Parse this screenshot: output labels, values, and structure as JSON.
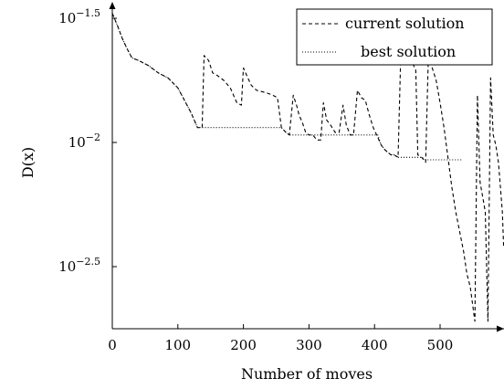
{
  "chart_data": {
    "type": "line",
    "title": "",
    "xlabel": "Number of moves",
    "ylabel": "D(x)",
    "xlim": [
      0,
      600
    ],
    "ylim": [
      -2.72,
      -1.45
    ],
    "y_scale": "log10",
    "grid": false,
    "legend_position": "top-right",
    "x_ticks": [
      {
        "value": 0,
        "label": "0"
      },
      {
        "value": 100,
        "label": "100"
      },
      {
        "value": 200,
        "label": "200"
      },
      {
        "value": 300,
        "label": "300"
      },
      {
        "value": 400,
        "label": "400"
      },
      {
        "value": 500,
        "label": "500"
      }
    ],
    "y_ticks": [
      {
        "value": -1.5,
        "base": "10",
        "exp": "−1.5"
      },
      {
        "value": -2.0,
        "base": "10",
        "exp": "−2"
      },
      {
        "value": -2.5,
        "base": "10",
        "exp": "−2.5"
      }
    ],
    "series": [
      {
        "name": "current solution",
        "style": "dashed",
        "color": "#000000",
        "points": [
          [
            0,
            -1.48
          ],
          [
            8,
            -1.53
          ],
          [
            15,
            -1.58
          ],
          [
            22,
            -1.62
          ],
          [
            30,
            -1.66
          ],
          [
            40,
            -1.67
          ],
          [
            55,
            -1.69
          ],
          [
            70,
            -1.72
          ],
          [
            85,
            -1.74
          ],
          [
            100,
            -1.78
          ],
          [
            110,
            -1.83
          ],
          [
            120,
            -1.88
          ],
          [
            130,
            -1.94
          ],
          [
            137,
            -1.94
          ],
          [
            140,
            -1.65
          ],
          [
            147,
            -1.67
          ],
          [
            153,
            -1.72
          ],
          [
            160,
            -1.73
          ],
          [
            170,
            -1.75
          ],
          [
            180,
            -1.78
          ],
          [
            190,
            -1.84
          ],
          [
            197,
            -1.85
          ],
          [
            200,
            -1.7
          ],
          [
            205,
            -1.73
          ],
          [
            212,
            -1.77
          ],
          [
            220,
            -1.79
          ],
          [
            235,
            -1.8
          ],
          [
            245,
            -1.81
          ],
          [
            252,
            -1.82
          ],
          [
            258,
            -1.94
          ],
          [
            265,
            -1.96
          ],
          [
            270,
            -1.97
          ],
          [
            276,
            -1.81
          ],
          [
            281,
            -1.85
          ],
          [
            285,
            -1.89
          ],
          [
            290,
            -1.92
          ],
          [
            295,
            -1.96
          ],
          [
            300,
            -1.97
          ],
          [
            306,
            -1.97
          ],
          [
            312,
            -1.99
          ],
          [
            318,
            -1.99
          ],
          [
            322,
            -1.84
          ],
          [
            327,
            -1.91
          ],
          [
            333,
            -1.93
          ],
          [
            340,
            -1.96
          ],
          [
            346,
            -1.96
          ],
          [
            352,
            -1.85
          ],
          [
            357,
            -1.93
          ],
          [
            363,
            -1.97
          ],
          [
            368,
            -1.97
          ],
          [
            374,
            -1.79
          ],
          [
            380,
            -1.82
          ],
          [
            386,
            -1.83
          ],
          [
            392,
            -1.89
          ],
          [
            398,
            -1.94
          ],
          [
            405,
            -1.98
          ],
          [
            410,
            -2.01
          ],
          [
            416,
            -2.03
          ],
          [
            425,
            -2.05
          ],
          [
            430,
            -2.05
          ],
          [
            436,
            -2.06
          ],
          [
            440,
            -1.65
          ],
          [
            447,
            -1.63
          ],
          [
            453,
            -1.65
          ],
          [
            458,
            -1.68
          ],
          [
            463,
            -1.71
          ],
          [
            466,
            -2.05
          ],
          [
            472,
            -2.06
          ],
          [
            478,
            -2.08
          ],
          [
            482,
            -1.66
          ],
          [
            488,
            -1.7
          ],
          [
            494,
            -1.75
          ],
          [
            500,
            -1.84
          ],
          [
            506,
            -1.94
          ],
          [
            512,
            -2.06
          ],
          [
            518,
            -2.18
          ],
          [
            524,
            -2.28
          ],
          [
            530,
            -2.36
          ],
          [
            536,
            -2.44
          ],
          [
            541,
            -2.53
          ],
          [
            546,
            -2.58
          ],
          [
            550,
            -2.66
          ],
          [
            553,
            -2.72
          ],
          [
            557,
            -1.81
          ],
          [
            561,
            -2.16
          ],
          [
            565,
            -2.22
          ],
          [
            569,
            -2.28
          ],
          [
            573,
            -2.72
          ],
          [
            577,
            -1.74
          ],
          [
            581,
            -1.97
          ],
          [
            585,
            -2.01
          ],
          [
            589,
            -2.08
          ],
          [
            592,
            -2.18
          ],
          [
            595,
            -2.28
          ],
          [
            597,
            -2.42
          ]
        ]
      },
      {
        "name": "best solution",
        "style": "dotted",
        "color": "#000000",
        "points": [
          [
            0,
            -1.48
          ],
          [
            8,
            -1.53
          ],
          [
            15,
            -1.58
          ],
          [
            22,
            -1.62
          ],
          [
            30,
            -1.66
          ],
          [
            40,
            -1.67
          ],
          [
            55,
            -1.69
          ],
          [
            70,
            -1.72
          ],
          [
            85,
            -1.74
          ],
          [
            100,
            -1.78
          ],
          [
            110,
            -1.83
          ],
          [
            120,
            -1.88
          ],
          [
            130,
            -1.94
          ],
          [
            137,
            -1.94
          ],
          [
            258,
            -1.94
          ],
          [
            265,
            -1.96
          ],
          [
            270,
            -1.97
          ],
          [
            405,
            -1.97
          ],
          [
            410,
            -2.01
          ],
          [
            416,
            -2.03
          ],
          [
            425,
            -2.05
          ],
          [
            430,
            -2.05
          ],
          [
            436,
            -2.06
          ],
          [
            472,
            -2.06
          ],
          [
            478,
            -2.07
          ],
          [
            535,
            -2.07
          ]
        ]
      }
    ]
  }
}
